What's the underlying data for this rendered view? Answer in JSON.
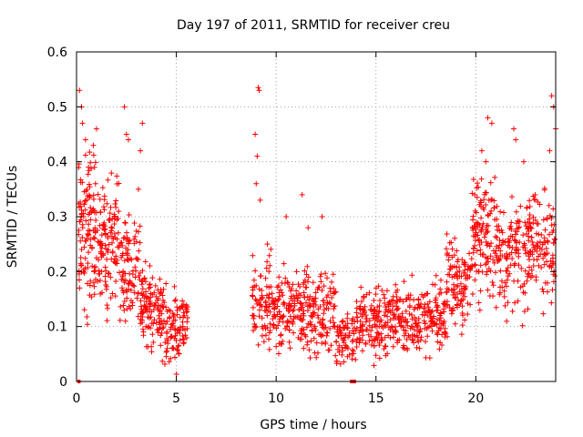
{
  "chart_data": {
    "type": "scatter",
    "title": "Day 197 of 2011, SRMTID for receiver creu",
    "xlabel": "GPS time / hours",
    "ylabel": "SRMTID / TECUs",
    "xlim": [
      0,
      24
    ],
    "ylim": [
      0,
      0.6
    ],
    "x_ticks": [
      0,
      5,
      10,
      15,
      20
    ],
    "x_tick_labels": [
      "0",
      "5",
      "10",
      "15",
      "20"
    ],
    "y_ticks": [
      0,
      0.1,
      0.2,
      0.3,
      0.4,
      0.5,
      0.6
    ],
    "y_tick_labels": [
      "0",
      "0.1",
      "0.2",
      "0.3",
      "0.4",
      "0.5",
      "0.6"
    ],
    "grid": true,
    "marker": "+",
    "color": "#ff0000",
    "zero_segments": [
      [
        0.05,
        0.2
      ],
      [
        13.7,
        14.0
      ]
    ],
    "bands": [
      {
        "x": [
          0.1,
          1.0
        ],
        "y": [
          0.08,
          0.4
        ],
        "n": 120
      },
      {
        "x": [
          1.0,
          2.2
        ],
        "y": [
          0.08,
          0.35
        ],
        "n": 120
      },
      {
        "x": [
          2.2,
          3.2
        ],
        "y": [
          0.06,
          0.3
        ],
        "n": 90
      },
      {
        "x": [
          3.2,
          4.2
        ],
        "y": [
          0.02,
          0.2
        ],
        "n": 100
      },
      {
        "x": [
          4.2,
          5.6
        ],
        "y": [
          0.0,
          0.17
        ],
        "n": 120
      },
      {
        "x": [
          8.8,
          9.8
        ],
        "y": [
          0.02,
          0.22
        ],
        "n": 80
      },
      {
        "x": [
          9.8,
          11.5
        ],
        "y": [
          0.02,
          0.2
        ],
        "n": 150
      },
      {
        "x": [
          11.5,
          13.0
        ],
        "y": [
          0.02,
          0.18
        ],
        "n": 120
      },
      {
        "x": [
          13.0,
          14.0
        ],
        "y": [
          0.0,
          0.12
        ],
        "n": 70
      },
      {
        "x": [
          14.0,
          16.0
        ],
        "y": [
          0.02,
          0.16
        ],
        "n": 170
      },
      {
        "x": [
          16.0,
          18.5
        ],
        "y": [
          0.03,
          0.17
        ],
        "n": 200
      },
      {
        "x": [
          18.5,
          19.8
        ],
        "y": [
          0.05,
          0.26
        ],
        "n": 110
      },
      {
        "x": [
          19.8,
          21.0
        ],
        "y": [
          0.1,
          0.36
        ],
        "n": 120
      },
      {
        "x": [
          21.0,
          22.5
        ],
        "y": [
          0.08,
          0.32
        ],
        "n": 120
      },
      {
        "x": [
          22.5,
          24.0
        ],
        "y": [
          0.1,
          0.34
        ],
        "n": 130
      }
    ],
    "sparse_highs": [
      [
        0.15,
        0.53
      ],
      [
        0.25,
        0.5
      ],
      [
        0.3,
        0.47
      ],
      [
        0.45,
        0.44
      ],
      [
        1.0,
        0.46
      ],
      [
        0.9,
        0.39
      ],
      [
        2.4,
        0.5
      ],
      [
        2.5,
        0.45
      ],
      [
        2.6,
        0.44
      ],
      [
        3.3,
        0.47
      ],
      [
        3.2,
        0.42
      ],
      [
        3.1,
        0.35
      ],
      [
        9.1,
        0.535
      ],
      [
        9.15,
        0.53
      ],
      [
        8.95,
        0.45
      ],
      [
        9.05,
        0.41
      ],
      [
        9.0,
        0.36
      ],
      [
        9.2,
        0.33
      ],
      [
        11.3,
        0.34
      ],
      [
        12.3,
        0.3
      ],
      [
        10.5,
        0.3
      ],
      [
        11.6,
        0.28
      ],
      [
        20.6,
        0.48
      ],
      [
        20.8,
        0.47
      ],
      [
        20.3,
        0.42
      ],
      [
        20.5,
        0.4
      ],
      [
        21.9,
        0.46
      ],
      [
        22.0,
        0.44
      ],
      [
        22.4,
        0.4
      ],
      [
        23.8,
        0.52
      ],
      [
        23.9,
        0.5
      ],
      [
        24.0,
        0.46
      ],
      [
        23.7,
        0.42
      ]
    ]
  }
}
